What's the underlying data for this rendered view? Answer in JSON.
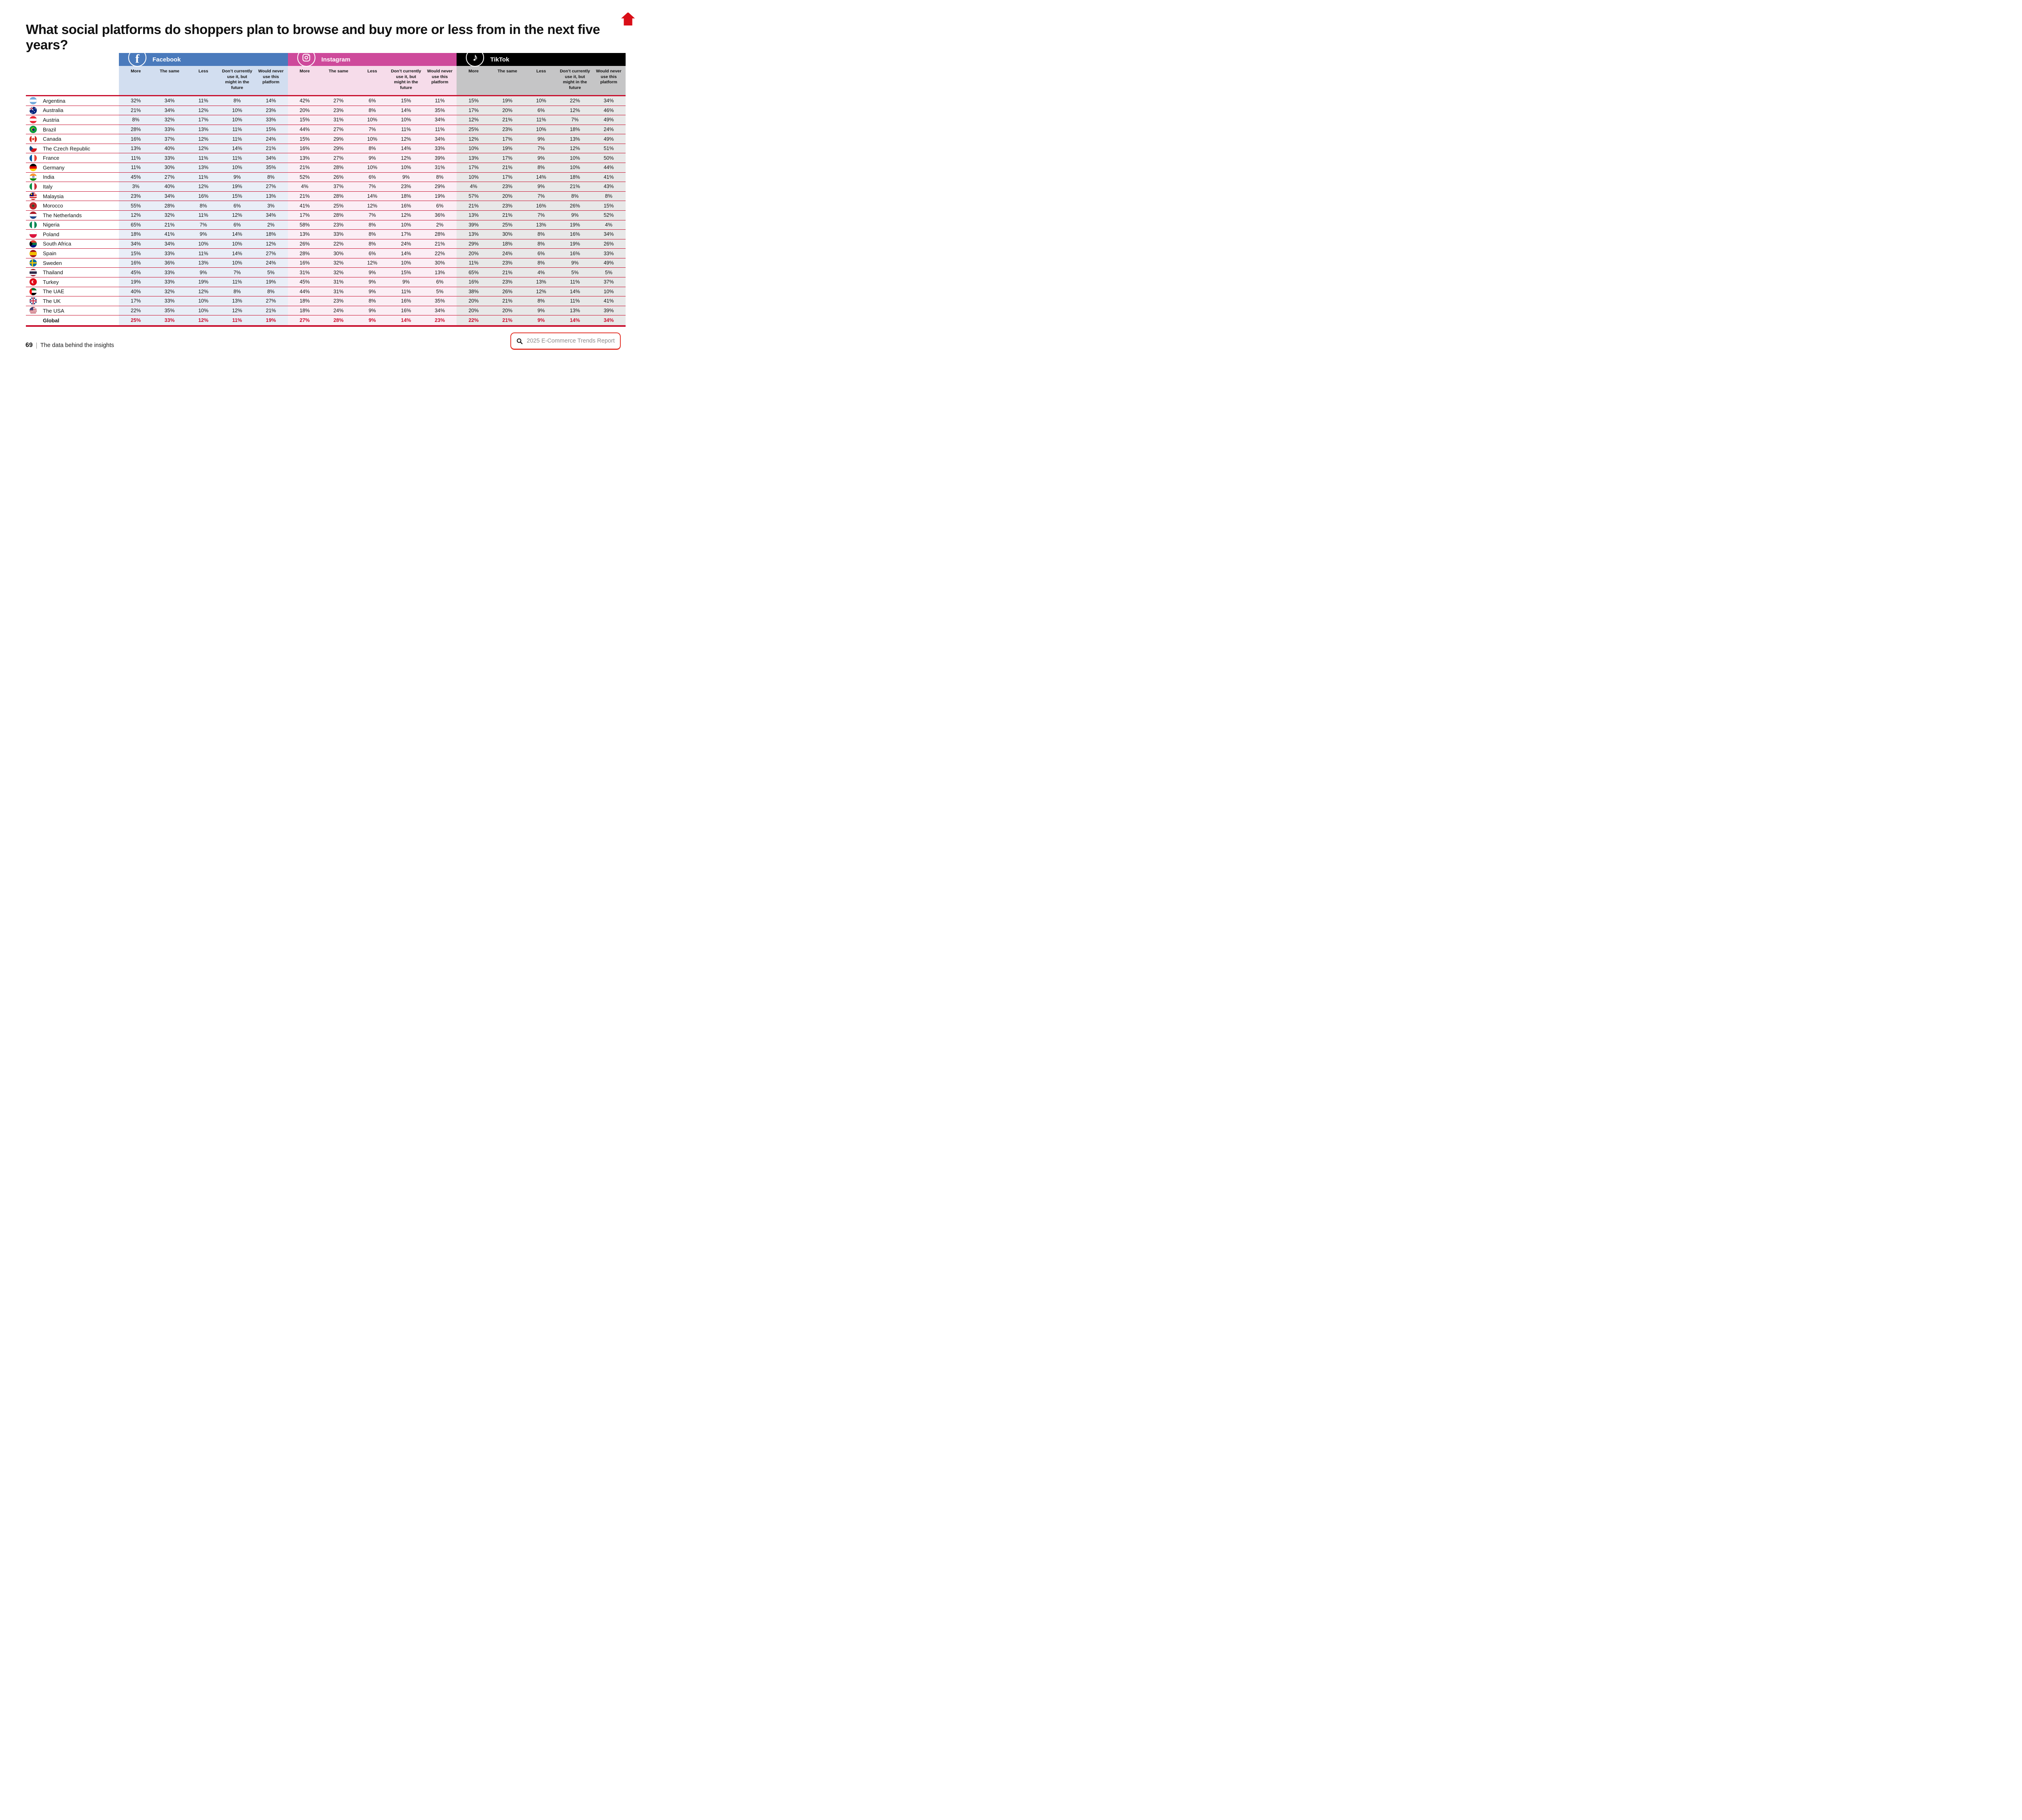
{
  "chart_data": {
    "type": "table",
    "title": "What social platforms do shoppers plan to browse and buy more or less from in the next five years?",
    "units": "percent",
    "column_groups": [
      {
        "id": "facebook",
        "label": "Facebook",
        "color": "#4a7abc",
        "header_tint": "#d2def0",
        "row_tint": "#e9eef7"
      },
      {
        "id": "instagram",
        "label": "Instagram",
        "color": "#ce4a9b",
        "header_tint": "#f6dcea",
        "row_tint": "#fbeef5"
      },
      {
        "id": "tiktok",
        "label": "TikTok",
        "color": "#000000",
        "header_tint": "#c5c5c6",
        "row_tint": "#e8e8e8"
      }
    ],
    "answer_columns": [
      "More",
      "The same",
      "Less",
      "Don’t currently use it, but might in the future",
      "Would never use this platform"
    ],
    "rows": [
      {
        "country": "Argentina",
        "flag": "ar",
        "facebook": [
          32,
          34,
          11,
          8,
          14
        ],
        "instagram": [
          42,
          27,
          6,
          15,
          11
        ],
        "tiktok": [
          15,
          19,
          10,
          22,
          34
        ]
      },
      {
        "country": "Australia",
        "flag": "au",
        "facebook": [
          21,
          34,
          12,
          10,
          23
        ],
        "instagram": [
          20,
          23,
          8,
          14,
          35
        ],
        "tiktok": [
          17,
          20,
          6,
          12,
          46
        ]
      },
      {
        "country": "Austria",
        "flag": "at",
        "facebook": [
          8,
          32,
          17,
          10,
          33
        ],
        "instagram": [
          15,
          31,
          10,
          10,
          34
        ],
        "tiktok": [
          12,
          21,
          11,
          7,
          49
        ]
      },
      {
        "country": "Brazil",
        "flag": "br",
        "facebook": [
          28,
          33,
          13,
          11,
          15
        ],
        "instagram": [
          44,
          27,
          7,
          11,
          11
        ],
        "tiktok": [
          25,
          23,
          10,
          18,
          24
        ]
      },
      {
        "country": "Canada",
        "flag": "ca",
        "facebook": [
          16,
          37,
          12,
          11,
          24
        ],
        "instagram": [
          15,
          29,
          10,
          12,
          34
        ],
        "tiktok": [
          12,
          17,
          9,
          13,
          49
        ]
      },
      {
        "country": "The Czech Republic",
        "flag": "cz",
        "facebook": [
          13,
          40,
          12,
          14,
          21
        ],
        "instagram": [
          16,
          29,
          8,
          14,
          33
        ],
        "tiktok": [
          10,
          19,
          7,
          12,
          51
        ]
      },
      {
        "country": "France",
        "flag": "fr",
        "facebook": [
          11,
          33,
          11,
          11,
          34
        ],
        "instagram": [
          13,
          27,
          9,
          12,
          39
        ],
        "tiktok": [
          13,
          17,
          9,
          10,
          50
        ]
      },
      {
        "country": "Germany",
        "flag": "de",
        "facebook": [
          11,
          30,
          13,
          10,
          35
        ],
        "instagram": [
          21,
          28,
          10,
          10,
          31
        ],
        "tiktok": [
          17,
          21,
          8,
          10,
          44
        ]
      },
      {
        "country": "India",
        "flag": "in",
        "facebook": [
          45,
          27,
          11,
          9,
          8
        ],
        "instagram": [
          52,
          26,
          6,
          9,
          8
        ],
        "tiktok": [
          10,
          17,
          14,
          18,
          41
        ]
      },
      {
        "country": "Italy",
        "flag": "it",
        "facebook": [
          3,
          40,
          12,
          19,
          27
        ],
        "instagram": [
          4,
          37,
          7,
          23,
          29
        ],
        "tiktok": [
          4,
          23,
          9,
          21,
          43
        ]
      },
      {
        "country": "Malaysia",
        "flag": "my",
        "facebook": [
          23,
          34,
          16,
          15,
          13
        ],
        "instagram": [
          21,
          28,
          14,
          18,
          19
        ],
        "tiktok": [
          57,
          20,
          7,
          8,
          8
        ]
      },
      {
        "country": "Morocco",
        "flag": "ma",
        "facebook": [
          55,
          28,
          8,
          6,
          3
        ],
        "instagram": [
          41,
          25,
          12,
          16,
          6
        ],
        "tiktok": [
          21,
          23,
          16,
          26,
          15
        ]
      },
      {
        "country": "The Netherlands",
        "flag": "nl",
        "facebook": [
          12,
          32,
          11,
          12,
          34
        ],
        "instagram": [
          17,
          28,
          7,
          12,
          36
        ],
        "tiktok": [
          13,
          21,
          7,
          9,
          52
        ]
      },
      {
        "country": "Nigeria",
        "flag": "ng",
        "facebook": [
          65,
          21,
          7,
          6,
          2
        ],
        "instagram": [
          58,
          23,
          8,
          10,
          2
        ],
        "tiktok": [
          39,
          25,
          13,
          19,
          4
        ]
      },
      {
        "country": "Poland",
        "flag": "pl",
        "facebook": [
          18,
          41,
          9,
          14,
          18
        ],
        "instagram": [
          13,
          33,
          8,
          17,
          28
        ],
        "tiktok": [
          13,
          30,
          8,
          16,
          34
        ]
      },
      {
        "country": "South Africa",
        "flag": "za",
        "facebook": [
          34,
          34,
          10,
          10,
          12
        ],
        "instagram": [
          26,
          22,
          8,
          24,
          21
        ],
        "tiktok": [
          29,
          18,
          8,
          19,
          26
        ]
      },
      {
        "country": "Spain",
        "flag": "es",
        "facebook": [
          15,
          33,
          11,
          14,
          27
        ],
        "instagram": [
          28,
          30,
          6,
          14,
          22
        ],
        "tiktok": [
          20,
          24,
          6,
          16,
          33
        ]
      },
      {
        "country": "Sweden",
        "flag": "se",
        "facebook": [
          16,
          36,
          13,
          10,
          24
        ],
        "instagram": [
          16,
          32,
          12,
          10,
          30
        ],
        "tiktok": [
          11,
          23,
          8,
          9,
          49
        ]
      },
      {
        "country": "Thailand",
        "flag": "th",
        "facebook": [
          45,
          33,
          9,
          7,
          5
        ],
        "instagram": [
          31,
          32,
          9,
          15,
          13
        ],
        "tiktok": [
          65,
          21,
          4,
          5,
          5
        ]
      },
      {
        "country": "Turkey",
        "flag": "tr",
        "facebook": [
          19,
          33,
          19,
          11,
          19
        ],
        "instagram": [
          45,
          31,
          9,
          9,
          6
        ],
        "tiktok": [
          16,
          23,
          13,
          11,
          37
        ]
      },
      {
        "country": "The UAE",
        "flag": "ae",
        "facebook": [
          40,
          32,
          12,
          8,
          8
        ],
        "instagram": [
          44,
          31,
          9,
          11,
          5
        ],
        "tiktok": [
          38,
          26,
          12,
          14,
          10
        ]
      },
      {
        "country": "The UK",
        "flag": "gb",
        "facebook": [
          17,
          33,
          10,
          13,
          27
        ],
        "instagram": [
          18,
          23,
          8,
          16,
          35
        ],
        "tiktok": [
          20,
          21,
          8,
          11,
          41
        ]
      },
      {
        "country": "The USA",
        "flag": "us",
        "facebook": [
          22,
          35,
          10,
          12,
          21
        ],
        "instagram": [
          18,
          24,
          9,
          16,
          34
        ],
        "tiktok": [
          20,
          20,
          9,
          13,
          39
        ]
      },
      {
        "country": "Global",
        "flag": null,
        "is_total": true,
        "facebook": [
          25,
          33,
          12,
          11,
          19
        ],
        "instagram": [
          27,
          28,
          9,
          14,
          23
        ],
        "tiktok": [
          22,
          21,
          9,
          14,
          34
        ]
      }
    ],
    "styles": {
      "separator_color": "#c8102e",
      "total_row_color": "#c8102e"
    }
  },
  "icons": {
    "home_icon": "red house, top right",
    "search_icon": "black magnifier",
    "facebook_icon": "white f in blue circle",
    "instagram_icon": "white camera in orange-pink gradient circle",
    "tiktok_icon": "white music note in black circle"
  },
  "footer": {
    "page_number": "69",
    "section_label": "The data behind the insights",
    "report_label": "2025 E-Commerce Trends Report"
  }
}
